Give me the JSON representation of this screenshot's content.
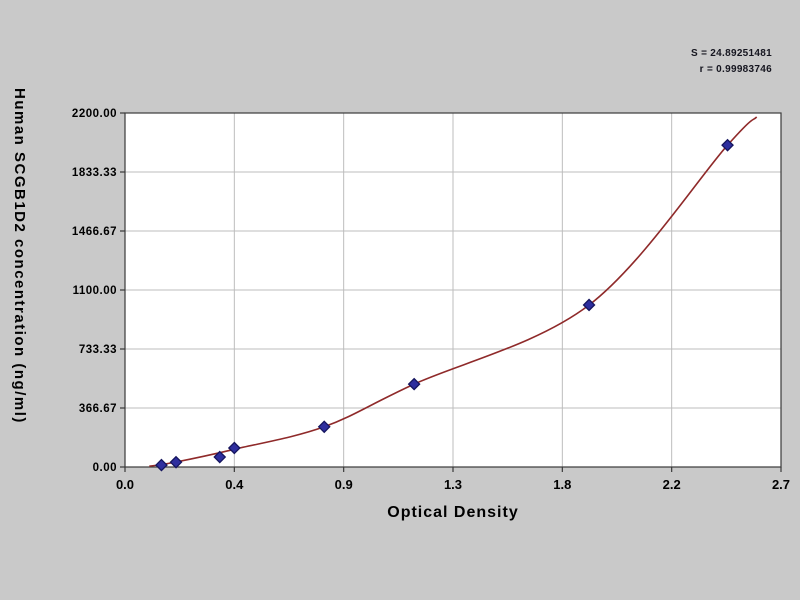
{
  "chart_data": {
    "type": "scatter",
    "title": "",
    "xlabel": "Optical Density",
    "ylabel": "Human SCGB1D2 concentration (ng/ml)",
    "x_tick_labels": [
      "0.0",
      "0.4",
      "0.9",
      "1.3",
      "1.8",
      "2.2",
      "2.7"
    ],
    "y_tick_labels": [
      "0.00",
      "366.67",
      "733.33",
      "1100.00",
      "1466.67",
      "1833.33",
      "2200.00"
    ],
    "xlim": [
      0,
      2.7
    ],
    "ylim": [
      0,
      2200
    ],
    "grid": true,
    "legend": "none",
    "annotations": [
      "S = 24.89251481",
      "r = 0.99983746"
    ],
    "points": [
      [
        0.15,
        12
      ],
      [
        0.21,
        30
      ],
      [
        0.39,
        62
      ],
      [
        0.45,
        118
      ],
      [
        0.82,
        250
      ],
      [
        1.19,
        515
      ],
      [
        1.91,
        1007
      ],
      [
        2.48,
        2000
      ]
    ],
    "curve_anchors": [
      [
        0.1,
        5
      ],
      [
        0.2,
        28
      ],
      [
        0.45,
        110
      ],
      [
        0.82,
        250
      ],
      [
        1.19,
        515
      ],
      [
        1.91,
        1007
      ],
      [
        2.48,
        2000
      ],
      [
        2.6,
        2175
      ]
    ],
    "colors": {
      "curve": "#8f2a2a",
      "point": "#2e2e9e",
      "point_border": "#15155e",
      "grid": "#bdbdbd",
      "axis": "#3a3a3a",
      "plot_bg": "#ffffff",
      "page_bg": "#c9c9c9",
      "text": "#000000"
    }
  }
}
